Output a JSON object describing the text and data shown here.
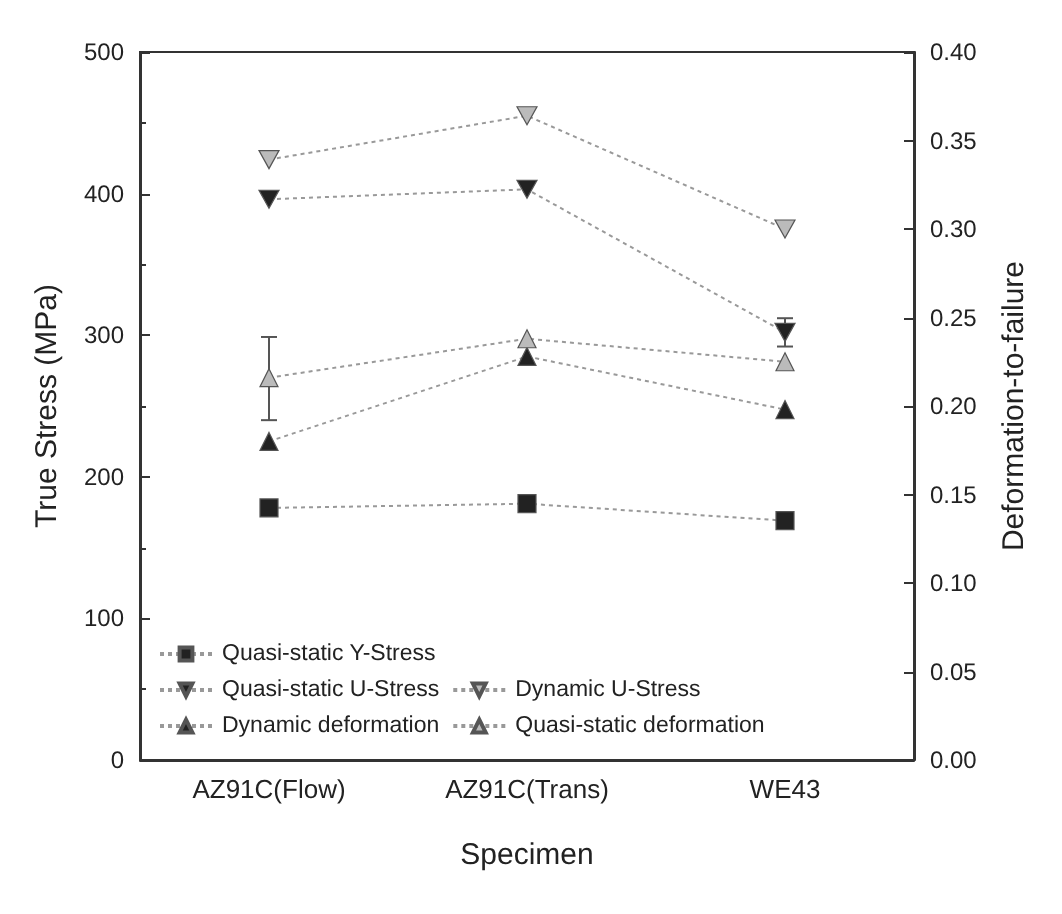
{
  "chart_data": {
    "type": "line",
    "xlabel": "Specimen",
    "ylabel": "True Stress (MPa)",
    "y2label": "Deformation-to-failure",
    "categories": [
      "AZ91C(Flow)",
      "AZ91C(Trans)",
      "WE43"
    ],
    "ylim": [
      0,
      500
    ],
    "yticks": [
      0,
      100,
      200,
      300,
      400,
      500
    ],
    "y2lim": [
      0,
      0.4
    ],
    "y2ticks": [
      {
        "value": 0,
        "label": "0.00"
      },
      0.05,
      {
        "value": 0.1,
        "label": "0.10"
      },
      0.15,
      {
        "value": 0.2,
        "label": "0.20"
      },
      0.25,
      {
        "value": 0.3,
        "label": "0.30"
      },
      0.35,
      {
        "value": 0.4,
        "label": "0.40"
      }
    ],
    "grid": false,
    "legend": "bottom left",
    "line_style": "dotted",
    "series": [
      {
        "name": "Quasi-static Y-Stress",
        "color": "#222222",
        "marker": "square",
        "values": [
          178,
          181,
          169
        ]
      },
      {
        "name": "Quasi-static U-Stress",
        "color": "#222222",
        "marker": "triangle-down",
        "values": [
          396,
          403,
          302
        ],
        "errors": [
          null,
          null,
          10
        ]
      },
      {
        "name": "Dynamic U-Stress",
        "color": "#bbbbbb",
        "marker": "triangle-down",
        "values": [
          424,
          455,
          375
        ]
      },
      {
        "name": "Dynamic deformation",
        "color": "#222222",
        "marker": "triangle",
        "axis": "y2",
        "values": [
          0.18,
          0.228,
          0.198
        ]
      },
      {
        "name": "Quasi-static deformation",
        "color": "#bbbbbb",
        "marker": "triangle",
        "axis": "y2",
        "values": [
          0.216,
          0.238,
          0.225
        ],
        "errors": [
          [
            0.192,
            0.239
          ],
          null,
          null
        ]
      }
    ]
  }
}
